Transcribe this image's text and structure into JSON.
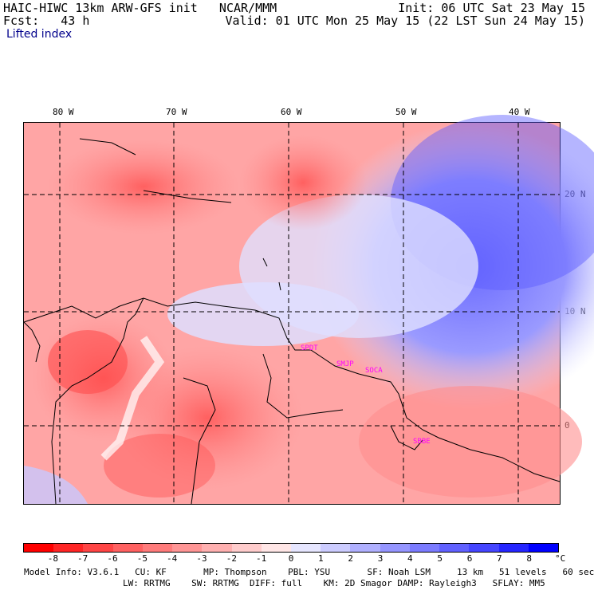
{
  "header": {
    "title_left": "HAIC-HIWC 13km ARW-GFS init   NCAR/MMM",
    "fcst_label": "Fcst:   43 h",
    "init": "Init: 06 UTC Sat 23 May 15",
    "valid": "Valid: 01 UTC Mon 25 May 15 (22 LST Sun 24 May 15)",
    "field": "Lifted index"
  },
  "lon_labels": [
    "80 W",
    "70 W",
    "60 W",
    "50 W",
    "40 W"
  ],
  "lat_labels": [
    "20 N",
    "10 N",
    "0"
  ],
  "stations": [
    "SPDT",
    "SMJP",
    "SOCA",
    "SBBE"
  ],
  "colorbar": {
    "ticks": [
      "-8",
      "-7",
      "-6",
      "-5",
      "-4",
      "-3",
      "-2",
      "-1",
      "0",
      "1",
      "2",
      "3",
      "4",
      "5",
      "6",
      "7",
      "8"
    ],
    "unit": "°C",
    "colors": [
      "#ff0000",
      "#ff2525",
      "#ff4545",
      "#ff6161",
      "#ff7b7b",
      "#ff9595",
      "#ffb0b0",
      "#ffcccc",
      "#ffe6e6",
      "#e6e6ff",
      "#ccccff",
      "#b0b0ff",
      "#9595ff",
      "#7b7bff",
      "#6161ff",
      "#4545ff",
      "#2525ff",
      "#0000ff"
    ]
  },
  "footer": {
    "line1": "Model Info: V3.6.1   CU: KF       MP: Thompson    PBL: YSU       SF: Noah LSM     13 km   51 levels   60 sec",
    "line2": "LW: RRTMG    SW: RRTMG  DIFF: full    KM: 2D Smagor DAMP: Rayleigh3   SFLAY: MM5"
  }
}
